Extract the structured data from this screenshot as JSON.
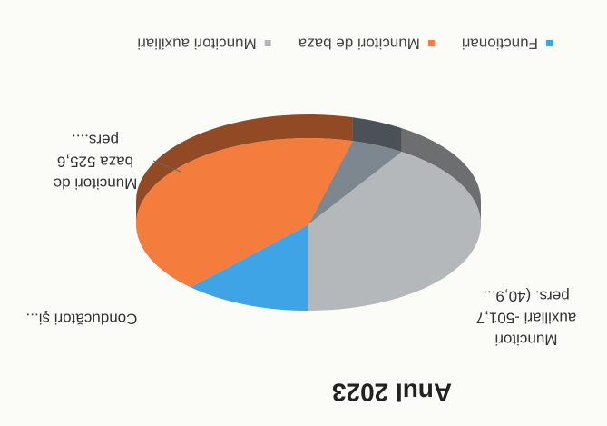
{
  "chart_data": {
    "type": "pie",
    "title": "Anul 2023",
    "categories": [
      "Functionari",
      "Muncitori de baza",
      null,
      "Muncitori auxiliari"
    ],
    "values": [
      12,
      42.1,
      5,
      40.9
    ],
    "colors": [
      "#3fa4e6",
      "#f47c3c",
      "#7d878f",
      "#b5b8bb"
    ],
    "value_labels": [
      [
        "Conducători şi..."
      ],
      [
        "Muncitori de",
        "baza 525,6",
        "pers...."
      ],
      null,
      [
        "Muncitori",
        "auxiliari -501,7",
        "pers. (40,9..."
      ]
    ],
    "legend": "top"
  }
}
